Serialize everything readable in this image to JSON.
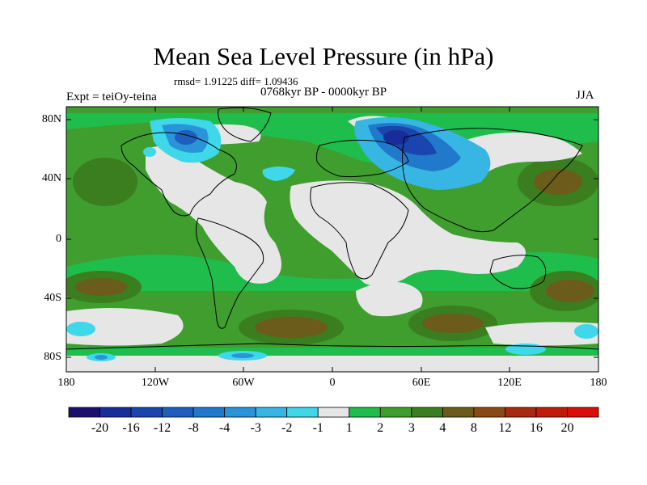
{
  "title": "Mean Sea Level Pressure (in hPa)",
  "stats": "rmsd= 1.91225 diff= 1.09436",
  "subtitle": "0768kyr BP - 0000kyr BP",
  "experiment": "Expt = teiOy-teina",
  "season": "JJA",
  "map": {
    "lat_ticks": [
      "80N",
      "40N",
      "0",
      "40S",
      "80S"
    ],
    "lon_ticks": [
      "180",
      "120W",
      "60W",
      "0",
      "60E",
      "120E",
      "180"
    ]
  },
  "colorbar": {
    "labels": [
      "-20",
      "-16",
      "-12",
      "-8",
      "-4",
      "-3",
      "-2",
      "-1",
      "1",
      "2",
      "3",
      "4",
      "8",
      "12",
      "16",
      "20"
    ],
    "colors": [
      "#1a0f6e",
      "#172d9a",
      "#1a45ae",
      "#1e5fbe",
      "#2179cc",
      "#2a94d8",
      "#37b6e4",
      "#3fd8ea",
      "#e6e6e6",
      "#1fbd4c",
      "#3f9e2e",
      "#3a7e20",
      "#6b5c1c",
      "#8a4a14",
      "#a8290e",
      "#bf1a0a",
      "#d90e08"
    ]
  },
  "palette": {
    "neutral": "#e6e6e6",
    "land_outline": "#000000"
  }
}
